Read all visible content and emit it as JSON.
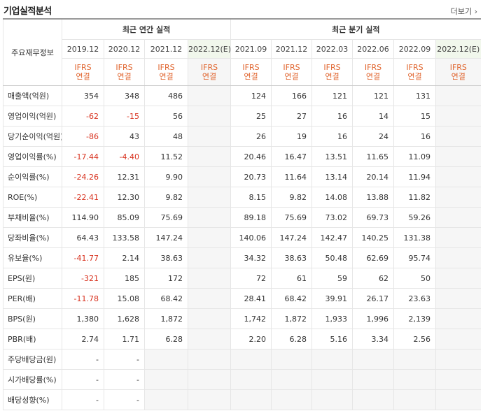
{
  "section_title": "기업실적분석",
  "more_link": "더보기",
  "corner_label": "주요재무정보",
  "annual_group": "최근 연간 실적",
  "quarter_group": "최근 분기 실적",
  "annual_periods": [
    "2019.12",
    "2020.12",
    "2021.12",
    "2022.12(E)"
  ],
  "quarter_periods": [
    "2021.09",
    "2021.12",
    "2022.03",
    "2022.06",
    "2022.09",
    "2022.12(E)"
  ],
  "ifrs_label": "IFRS",
  "consol_label": "연결",
  "rows": [
    {
      "label": "매출액(억원)",
      "annual": [
        "354",
        "348",
        "486",
        ""
      ],
      "quarter": [
        "124",
        "166",
        "121",
        "121",
        "131",
        ""
      ]
    },
    {
      "label": "영업이익(억원)",
      "annual": [
        "-62",
        "-15",
        "56",
        ""
      ],
      "quarter": [
        "25",
        "27",
        "16",
        "14",
        "15",
        ""
      ]
    },
    {
      "label": "당기순이익(억원)",
      "annual": [
        "-86",
        "43",
        "48",
        ""
      ],
      "quarter": [
        "26",
        "19",
        "16",
        "24",
        "16",
        ""
      ]
    },
    {
      "label": "영업이익률(%)",
      "annual": [
        "-17.44",
        "-4.40",
        "11.52",
        ""
      ],
      "quarter": [
        "20.46",
        "16.47",
        "13.51",
        "11.65",
        "11.09",
        ""
      ]
    },
    {
      "label": "순이익률(%)",
      "annual": [
        "-24.26",
        "12.31",
        "9.90",
        ""
      ],
      "quarter": [
        "20.73",
        "11.64",
        "13.14",
        "20.14",
        "11.94",
        ""
      ]
    },
    {
      "label": "ROE(%)",
      "annual": [
        "-22.41",
        "12.30",
        "9.82",
        ""
      ],
      "quarter": [
        "8.15",
        "9.82",
        "14.08",
        "13.88",
        "11.82",
        ""
      ]
    },
    {
      "label": "부채비율(%)",
      "annual": [
        "114.90",
        "85.09",
        "75.69",
        ""
      ],
      "quarter": [
        "89.18",
        "75.69",
        "73.02",
        "69.73",
        "59.26",
        ""
      ]
    },
    {
      "label": "당좌비율(%)",
      "annual": [
        "64.43",
        "133.58",
        "147.24",
        ""
      ],
      "quarter": [
        "140.06",
        "147.24",
        "142.47",
        "140.25",
        "131.38",
        ""
      ]
    },
    {
      "label": "유보율(%)",
      "annual": [
        "-41.77",
        "2.14",
        "38.63",
        ""
      ],
      "quarter": [
        "34.32",
        "38.63",
        "50.48",
        "62.69",
        "95.74",
        ""
      ]
    },
    {
      "label": "EPS(원)",
      "annual": [
        "-321",
        "185",
        "172",
        ""
      ],
      "quarter": [
        "72",
        "61",
        "59",
        "62",
        "50",
        ""
      ]
    },
    {
      "label": "PER(배)",
      "annual": [
        "-11.78",
        "15.08",
        "68.42",
        ""
      ],
      "quarter": [
        "28.41",
        "68.42",
        "39.91",
        "26.17",
        "23.63",
        ""
      ]
    },
    {
      "label": "BPS(원)",
      "annual": [
        "1,380",
        "1,628",
        "1,872",
        ""
      ],
      "quarter": [
        "1,742",
        "1,872",
        "1,933",
        "1,996",
        "2,139",
        ""
      ]
    },
    {
      "label": "PBR(배)",
      "annual": [
        "2.74",
        "1.71",
        "6.28",
        ""
      ],
      "quarter": [
        "2.20",
        "6.28",
        "5.16",
        "3.34",
        "2.56",
        ""
      ]
    },
    {
      "label": "주당배당금(원)",
      "annual": [
        "-",
        "-",
        "",
        ""
      ],
      "quarter": [
        "",
        "",
        "",
        "",
        "",
        ""
      ]
    },
    {
      "label": "시가배당률(%)",
      "annual": [
        "-",
        "-",
        "",
        ""
      ],
      "quarter": [
        "",
        "",
        "",
        "",
        "",
        ""
      ]
    },
    {
      "label": "배당성향(%)",
      "annual": [
        "-",
        "-",
        "",
        ""
      ],
      "quarter": [
        "",
        "",
        "",
        "",
        "",
        ""
      ]
    }
  ]
}
